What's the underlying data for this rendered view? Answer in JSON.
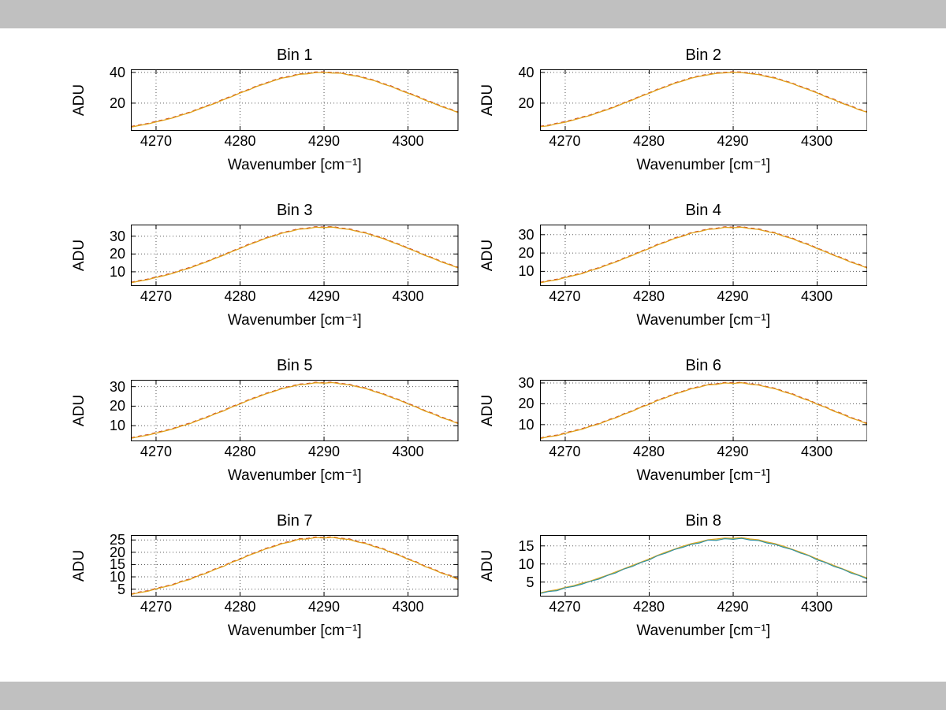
{
  "figure": {
    "ylabel": "ADU",
    "xlabel": "Wavenumber [cm⁻¹]",
    "colors": {
      "orange": "#e0a21c",
      "red_dashed": "#c8381f",
      "teal": "#2e8ca3",
      "green": "#7cbf6b",
      "chrome_gray": "#c0c0c0",
      "grid": "#555555"
    }
  },
  "chart_data": [
    {
      "type": "line",
      "title": "Bin 1",
      "xlabel": "Wavenumber [cm⁻¹]",
      "ylabel": "ADU",
      "x_start": 4267,
      "x_step": 1,
      "xlim": [
        4267,
        4306
      ],
      "xticks": [
        4270,
        4280,
        4290,
        4300
      ],
      "ylim": [
        2,
        42
      ],
      "yticks": [
        20,
        40
      ],
      "values_sets": [
        [
          4.4,
          5.5,
          6.4,
          7.8,
          9.0,
          10.4,
          12.2,
          13.8,
          15.9,
          17.9,
          19.8,
          22.2,
          24.2,
          26.6,
          28.5,
          30.9,
          32.6,
          34.6,
          36.3,
          37.2,
          38.7,
          39.1,
          39.9,
          40.0,
          39.6,
          39.5,
          38.3,
          37.5,
          36.0,
          34.6,
          32.5,
          30.8,
          28.5,
          26.4,
          24.4,
          22.0,
          20.0,
          17.7,
          15.9,
          13.8
        ]
      ],
      "series": [
        {
          "name": "trace-dashed",
          "color": "#c8381f",
          "dash": "5 4",
          "set": 0,
          "width": 1
        },
        {
          "name": "trace-main",
          "color": "#e0a21c",
          "dash": "",
          "set": 0,
          "width": 1.3
        }
      ]
    },
    {
      "type": "line",
      "title": "Bin 2",
      "xlabel": "Wavenumber [cm⁻¹]",
      "ylabel": "ADU",
      "x_start": 4267,
      "x_step": 1,
      "xlim": [
        4267,
        4306
      ],
      "xticks": [
        4270,
        4280,
        4290,
        4300
      ],
      "ylim": [
        2,
        42
      ],
      "yticks": [
        20,
        40
      ],
      "values_sets": [
        [
          4.6,
          5.3,
          6.6,
          7.6,
          9.1,
          10.6,
          12.0,
          14.0,
          15.7,
          17.7,
          20.0,
          22.0,
          24.4,
          26.4,
          28.7,
          30.6,
          32.8,
          34.4,
          36.2,
          37.5,
          38.4,
          39.4,
          39.7,
          40.1,
          39.9,
          39.2,
          38.6,
          37.3,
          36.2,
          34.4,
          32.8,
          30.6,
          28.7,
          26.6,
          24.2,
          22.2,
          19.8,
          17.9,
          15.7,
          14.0
        ]
      ],
      "series": [
        {
          "name": "trace-dashed",
          "color": "#c8381f",
          "dash": "5 4",
          "set": 0,
          "width": 1
        },
        {
          "name": "trace-main",
          "color": "#e0a21c",
          "dash": "",
          "set": 0,
          "width": 1.3
        }
      ]
    },
    {
      "type": "line",
      "title": "Bin 3",
      "xlabel": "Wavenumber [cm⁻¹]",
      "ylabel": "ADU",
      "x_start": 4267,
      "x_step": 1,
      "xlim": [
        4267,
        4306
      ],
      "xticks": [
        4270,
        4280,
        4290,
        4300
      ],
      "ylim": [
        2,
        36.5
      ],
      "yticks": [
        10,
        20,
        30
      ],
      "values_sets": [
        [
          3.8,
          4.8,
          5.6,
          6.8,
          7.9,
          9.1,
          10.7,
          12.1,
          13.9,
          15.5,
          17.5,
          19.2,
          21.3,
          23.1,
          25.1,
          26.8,
          28.7,
          30.1,
          31.7,
          32.7,
          33.9,
          34.2,
          35.0,
          34.8,
          35.1,
          34.3,
          33.8,
          32.6,
          31.7,
          30.1,
          28.7,
          26.8,
          25.1,
          23.1,
          21.3,
          19.2,
          17.5,
          15.5,
          13.9,
          12.1
        ]
      ],
      "series": [
        {
          "name": "trace-dashed",
          "color": "#c8381f",
          "dash": "5 4",
          "set": 0,
          "width": 1
        },
        {
          "name": "trace-main",
          "color": "#e0a21c",
          "dash": "",
          "set": 0,
          "width": 1.3
        }
      ]
    },
    {
      "type": "line",
      "title": "Bin 4",
      "xlabel": "Wavenumber [cm⁻¹]",
      "ylabel": "ADU",
      "x_start": 4267,
      "x_step": 1,
      "xlim": [
        4267,
        4306
      ],
      "xticks": [
        4270,
        4280,
        4290,
        4300
      ],
      "ylim": [
        2,
        35.5
      ],
      "yticks": [
        10,
        20,
        30
      ],
      "values_sets": [
        [
          3.7,
          4.7,
          5.4,
          6.6,
          7.7,
          8.8,
          10.4,
          11.7,
          13.5,
          15.0,
          17.0,
          18.7,
          20.7,
          22.4,
          24.4,
          26.0,
          27.9,
          29.2,
          30.8,
          31.7,
          32.9,
          33.2,
          34.0,
          33.8,
          34.1,
          33.3,
          32.9,
          31.7,
          30.8,
          29.2,
          27.9,
          26.0,
          24.4,
          22.4,
          20.7,
          18.7,
          17.0,
          15.0,
          13.5,
          11.7
        ]
      ],
      "series": [
        {
          "name": "trace-dashed",
          "color": "#c8381f",
          "dash": "5 4",
          "set": 0,
          "width": 1
        },
        {
          "name": "trace-main",
          "color": "#e0a21c",
          "dash": "",
          "set": 0,
          "width": 1.3
        }
      ]
    },
    {
      "type": "line",
      "title": "Bin 5",
      "xlabel": "Wavenumber [cm⁻¹]",
      "ylabel": "ADU",
      "x_start": 4267,
      "x_step": 1,
      "xlim": [
        4267,
        4306
      ],
      "xticks": [
        4270,
        4280,
        4290,
        4300
      ],
      "ylim": [
        2,
        33.5
      ],
      "yticks": [
        10,
        20,
        30
      ],
      "values_sets": [
        [
          3.5,
          4.4,
          5.1,
          6.2,
          7.2,
          8.3,
          9.8,
          11.0,
          12.7,
          14.1,
          16.0,
          17.5,
          19.5,
          21.1,
          23.0,
          24.5,
          26.2,
          27.5,
          29.0,
          29.9,
          31.0,
          31.3,
          32.0,
          31.8,
          32.1,
          31.4,
          30.9,
          29.9,
          29.0,
          27.5,
          26.2,
          24.5,
          23.0,
          21.1,
          19.5,
          17.5,
          16.0,
          14.1,
          12.7,
          11.0
        ]
      ],
      "series": [
        {
          "name": "trace-dashed",
          "color": "#c8381f",
          "dash": "5 4",
          "set": 0,
          "width": 1
        },
        {
          "name": "trace-main",
          "color": "#e0a21c",
          "dash": "",
          "set": 0,
          "width": 1.3
        }
      ]
    },
    {
      "type": "line",
      "title": "Bin 6",
      "xlabel": "Wavenumber [cm⁻¹]",
      "ylabel": "ADU",
      "x_start": 4267,
      "x_step": 1,
      "xlim": [
        4267,
        4306
      ],
      "xticks": [
        4270,
        4280,
        4290,
        4300
      ],
      "ylim": [
        2,
        31.5
      ],
      "yticks": [
        10,
        20,
        30
      ],
      "values_sets": [
        [
          3.3,
          4.2,
          4.7,
          5.8,
          6.8,
          7.8,
          9.2,
          10.3,
          11.9,
          13.2,
          15.0,
          16.4,
          18.3,
          19.7,
          21.6,
          22.9,
          24.6,
          25.8,
          27.2,
          28.0,
          29.1,
          29.3,
          30.0,
          29.8,
          30.1,
          29.4,
          29.0,
          28.0,
          27.2,
          25.8,
          24.6,
          22.9,
          21.6,
          19.7,
          18.3,
          16.4,
          15.0,
          13.2,
          11.9,
          10.3
        ]
      ],
      "series": [
        {
          "name": "trace-dashed",
          "color": "#c8381f",
          "dash": "5 4",
          "set": 0,
          "width": 1
        },
        {
          "name": "trace-main",
          "color": "#e0a21c",
          "dash": "",
          "set": 0,
          "width": 1.3
        }
      ]
    },
    {
      "type": "line",
      "title": "Bin 7",
      "xlabel": "Wavenumber [cm⁻¹]",
      "ylabel": "ADU",
      "x_start": 4267,
      "x_step": 1,
      "xlim": [
        4267,
        4306
      ],
      "xticks": [
        4270,
        4280,
        4290,
        4300
      ],
      "ylim": [
        2,
        27
      ],
      "yticks": [
        5,
        10,
        15,
        20,
        25
      ],
      "values_sets": [
        [
          2.8,
          3.6,
          4.1,
          5.1,
          5.9,
          6.7,
          8.0,
          8.9,
          10.4,
          11.5,
          13.0,
          14.2,
          15.9,
          17.1,
          18.7,
          19.9,
          21.3,
          22.3,
          23.5,
          24.2,
          25.3,
          25.4,
          26.0,
          25.8,
          26.1,
          25.5,
          25.2,
          24.2,
          23.5,
          22.3,
          21.3,
          19.9,
          18.7,
          17.1,
          15.9,
          14.2,
          13.0,
          11.5,
          10.4,
          8.9
        ]
      ],
      "series": [
        {
          "name": "trace-dashed",
          "color": "#c8381f",
          "dash": "5 4",
          "set": 0,
          "width": 1
        },
        {
          "name": "trace-main",
          "color": "#e0a21c",
          "dash": "",
          "set": 0,
          "width": 1.3
        }
      ]
    },
    {
      "type": "line",
      "title": "Bin 8",
      "xlabel": "Wavenumber [cm⁻¹]",
      "ylabel": "ADU",
      "x_start": 4267,
      "x_step": 1,
      "xlim": [
        4267,
        4306
      ],
      "xticks": [
        4270,
        4280,
        4290,
        4300
      ],
      "ylim": [
        1,
        18
      ],
      "yticks": [
        5,
        10,
        15
      ],
      "values_sets": [
        [
          1.8,
          2.4,
          2.6,
          3.4,
          3.8,
          4.4,
          5.2,
          5.8,
          6.8,
          7.5,
          8.6,
          9.3,
          10.4,
          11.1,
          12.3,
          13.0,
          14.0,
          14.6,
          15.4,
          15.8,
          16.6,
          16.5,
          17.0,
          16.8,
          17.1,
          16.6,
          16.5,
          15.8,
          15.4,
          14.6,
          14.0,
          13.0,
          12.3,
          11.1,
          10.4,
          9.3,
          8.6,
          7.5,
          6.8,
          5.8
        ],
        [
          2.0,
          2.5,
          2.9,
          3.5,
          4.0,
          4.7,
          5.3,
          6.1,
          6.9,
          7.8,
          8.7,
          9.6,
          10.5,
          11.4,
          12.4,
          13.3,
          14.1,
          14.9,
          15.6,
          16.1,
          16.7,
          16.9,
          17.2,
          17.1,
          17.3,
          16.9,
          16.7,
          16.1,
          15.6,
          14.9,
          14.1,
          13.3,
          12.4,
          11.4,
          10.5,
          9.6,
          8.7,
          7.8,
          6.9,
          6.1
        ],
        [
          1.9,
          2.4,
          2.7,
          3.4,
          3.9,
          4.5,
          5.2,
          5.9,
          6.8,
          7.6,
          8.6,
          9.4,
          10.4,
          11.2,
          12.3,
          13.1,
          14.0,
          14.7,
          15.4,
          15.9,
          16.6,
          16.6,
          17.0,
          16.9,
          17.1,
          16.7,
          16.5,
          15.9,
          15.4,
          14.7,
          14.0,
          13.1,
          12.3,
          11.2,
          10.4,
          9.4,
          8.6,
          7.6,
          6.8,
          5.9
        ]
      ],
      "series": [
        {
          "name": "trace-orange",
          "color": "#e0a21c",
          "dash": "",
          "set": 1,
          "width": 1.2
        },
        {
          "name": "trace-green",
          "color": "#7cbf6b",
          "dash": "",
          "set": 2,
          "width": 1
        },
        {
          "name": "trace-teal",
          "color": "#2e8ca3",
          "dash": "",
          "set": 0,
          "width": 1
        }
      ]
    }
  ]
}
